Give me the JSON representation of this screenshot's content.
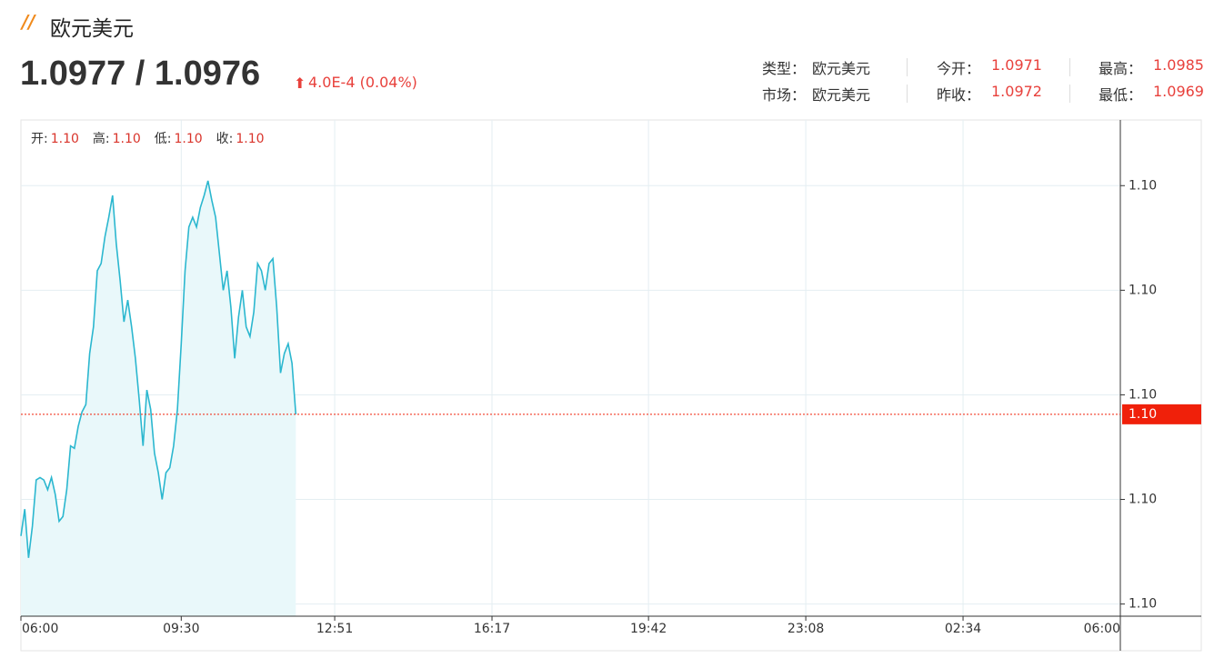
{
  "header": {
    "title": "欧元美元",
    "price": "1.0977 / 1.0976",
    "change": "4.0E-4 (0.04%)",
    "info": [
      [
        {
          "label": "类型：",
          "value": "欧元美元"
        },
        {
          "label": "今开：",
          "value": "1.0971"
        },
        {
          "label": "最高：",
          "value": "1.0985"
        }
      ],
      [
        {
          "label": "市场：",
          "value": "欧元美元"
        },
        {
          "label": "昨收：",
          "value": "1.0972"
        },
        {
          "label": "最低：",
          "value": "1.0969"
        }
      ]
    ]
  },
  "chart_data": {
    "type": "area",
    "color": "#2bb7cf",
    "fill": "#e9f8fa",
    "ohlc": [
      {
        "name": "开:",
        "value": 1.0971,
        "label": "1.10"
      },
      {
        "name": "高:",
        "value": 1.0985,
        "label": "1.10"
      },
      {
        "name": "低:",
        "value": 1.0969,
        "label": "1.10"
      },
      {
        "name": "收:",
        "value": 1.0976,
        "label": "1.10"
      }
    ],
    "x": [
      "06:00",
      "06:05",
      "06:10",
      "06:15",
      "06:20",
      "06:25",
      "06:30",
      "06:35",
      "06:40",
      "06:45",
      "06:50",
      "06:55",
      "07:00",
      "07:05",
      "07:10",
      "07:15",
      "07:20",
      "07:25",
      "07:30",
      "07:35",
      "07:40",
      "07:45",
      "07:50",
      "07:55",
      "08:00",
      "08:05",
      "08:10",
      "08:15",
      "08:20",
      "08:25",
      "08:30",
      "08:35",
      "08:40",
      "08:45",
      "08:50",
      "08:55",
      "09:00",
      "09:05",
      "09:10",
      "09:15",
      "09:20",
      "09:25",
      "09:30",
      "09:35",
      "09:40",
      "09:45",
      "09:50",
      "09:55",
      "10:00",
      "10:05",
      "10:10",
      "10:15",
      "10:20",
      "10:25",
      "10:30",
      "10:35",
      "10:40",
      "10:45",
      "10:50",
      "10:55",
      "11:00",
      "11:05",
      "11:10",
      "11:15",
      "11:20",
      "11:25",
      "11:30",
      "11:35",
      "11:40",
      "11:45",
      "11:50",
      "11:55",
      "12:00"
    ],
    "values": [
      1.09701,
      1.09712,
      1.09692,
      1.09705,
      1.09724,
      1.09725,
      1.09724,
      1.0972,
      1.09725,
      1.09718,
      1.09707,
      1.09709,
      1.0972,
      1.09738,
      1.09737,
      1.09746,
      1.09752,
      1.09755,
      1.09776,
      1.09787,
      1.0981,
      1.09813,
      1.09824,
      1.09832,
      1.09841,
      1.09821,
      1.09806,
      1.09789,
      1.09798,
      1.09787,
      1.09774,
      1.09757,
      1.09738,
      1.09761,
      1.09753,
      1.09735,
      1.09727,
      1.09716,
      1.09727,
      1.09729,
      1.09738,
      1.09753,
      1.0978,
      1.0981,
      1.09828,
      1.09832,
      1.09828,
      1.09836,
      1.09841,
      1.09847,
      1.09839,
      1.09832,
      1.09817,
      1.09802,
      1.0981,
      1.09795,
      1.09774,
      1.09791,
      1.09802,
      1.09787,
      1.09783,
      1.09793,
      1.09813,
      1.0981,
      1.09802,
      1.09813,
      1.09815,
      1.09795,
      1.09768,
      1.09776,
      1.0978,
      1.09772,
      1.09751
    ],
    "xticks": [
      "06:00",
      "09:30",
      "12:51",
      "16:17",
      "19:42",
      "23:08",
      "02:34",
      "06:00"
    ],
    "ylim": [
      1.09668,
      1.09872
    ],
    "yticks": [
      {
        "value": 1.09845,
        "label": "1.10"
      },
      {
        "value": 1.09802,
        "label": "1.10"
      },
      {
        "value": 1.09759,
        "label": "1.10"
      },
      {
        "value": 1.09716,
        "label": "1.10"
      },
      {
        "value": 1.09673,
        "label": "1.10"
      }
    ],
    "last": {
      "value": 1.09751,
      "label": "1.10",
      "color": "#f0200a"
    },
    "grid": true
  }
}
